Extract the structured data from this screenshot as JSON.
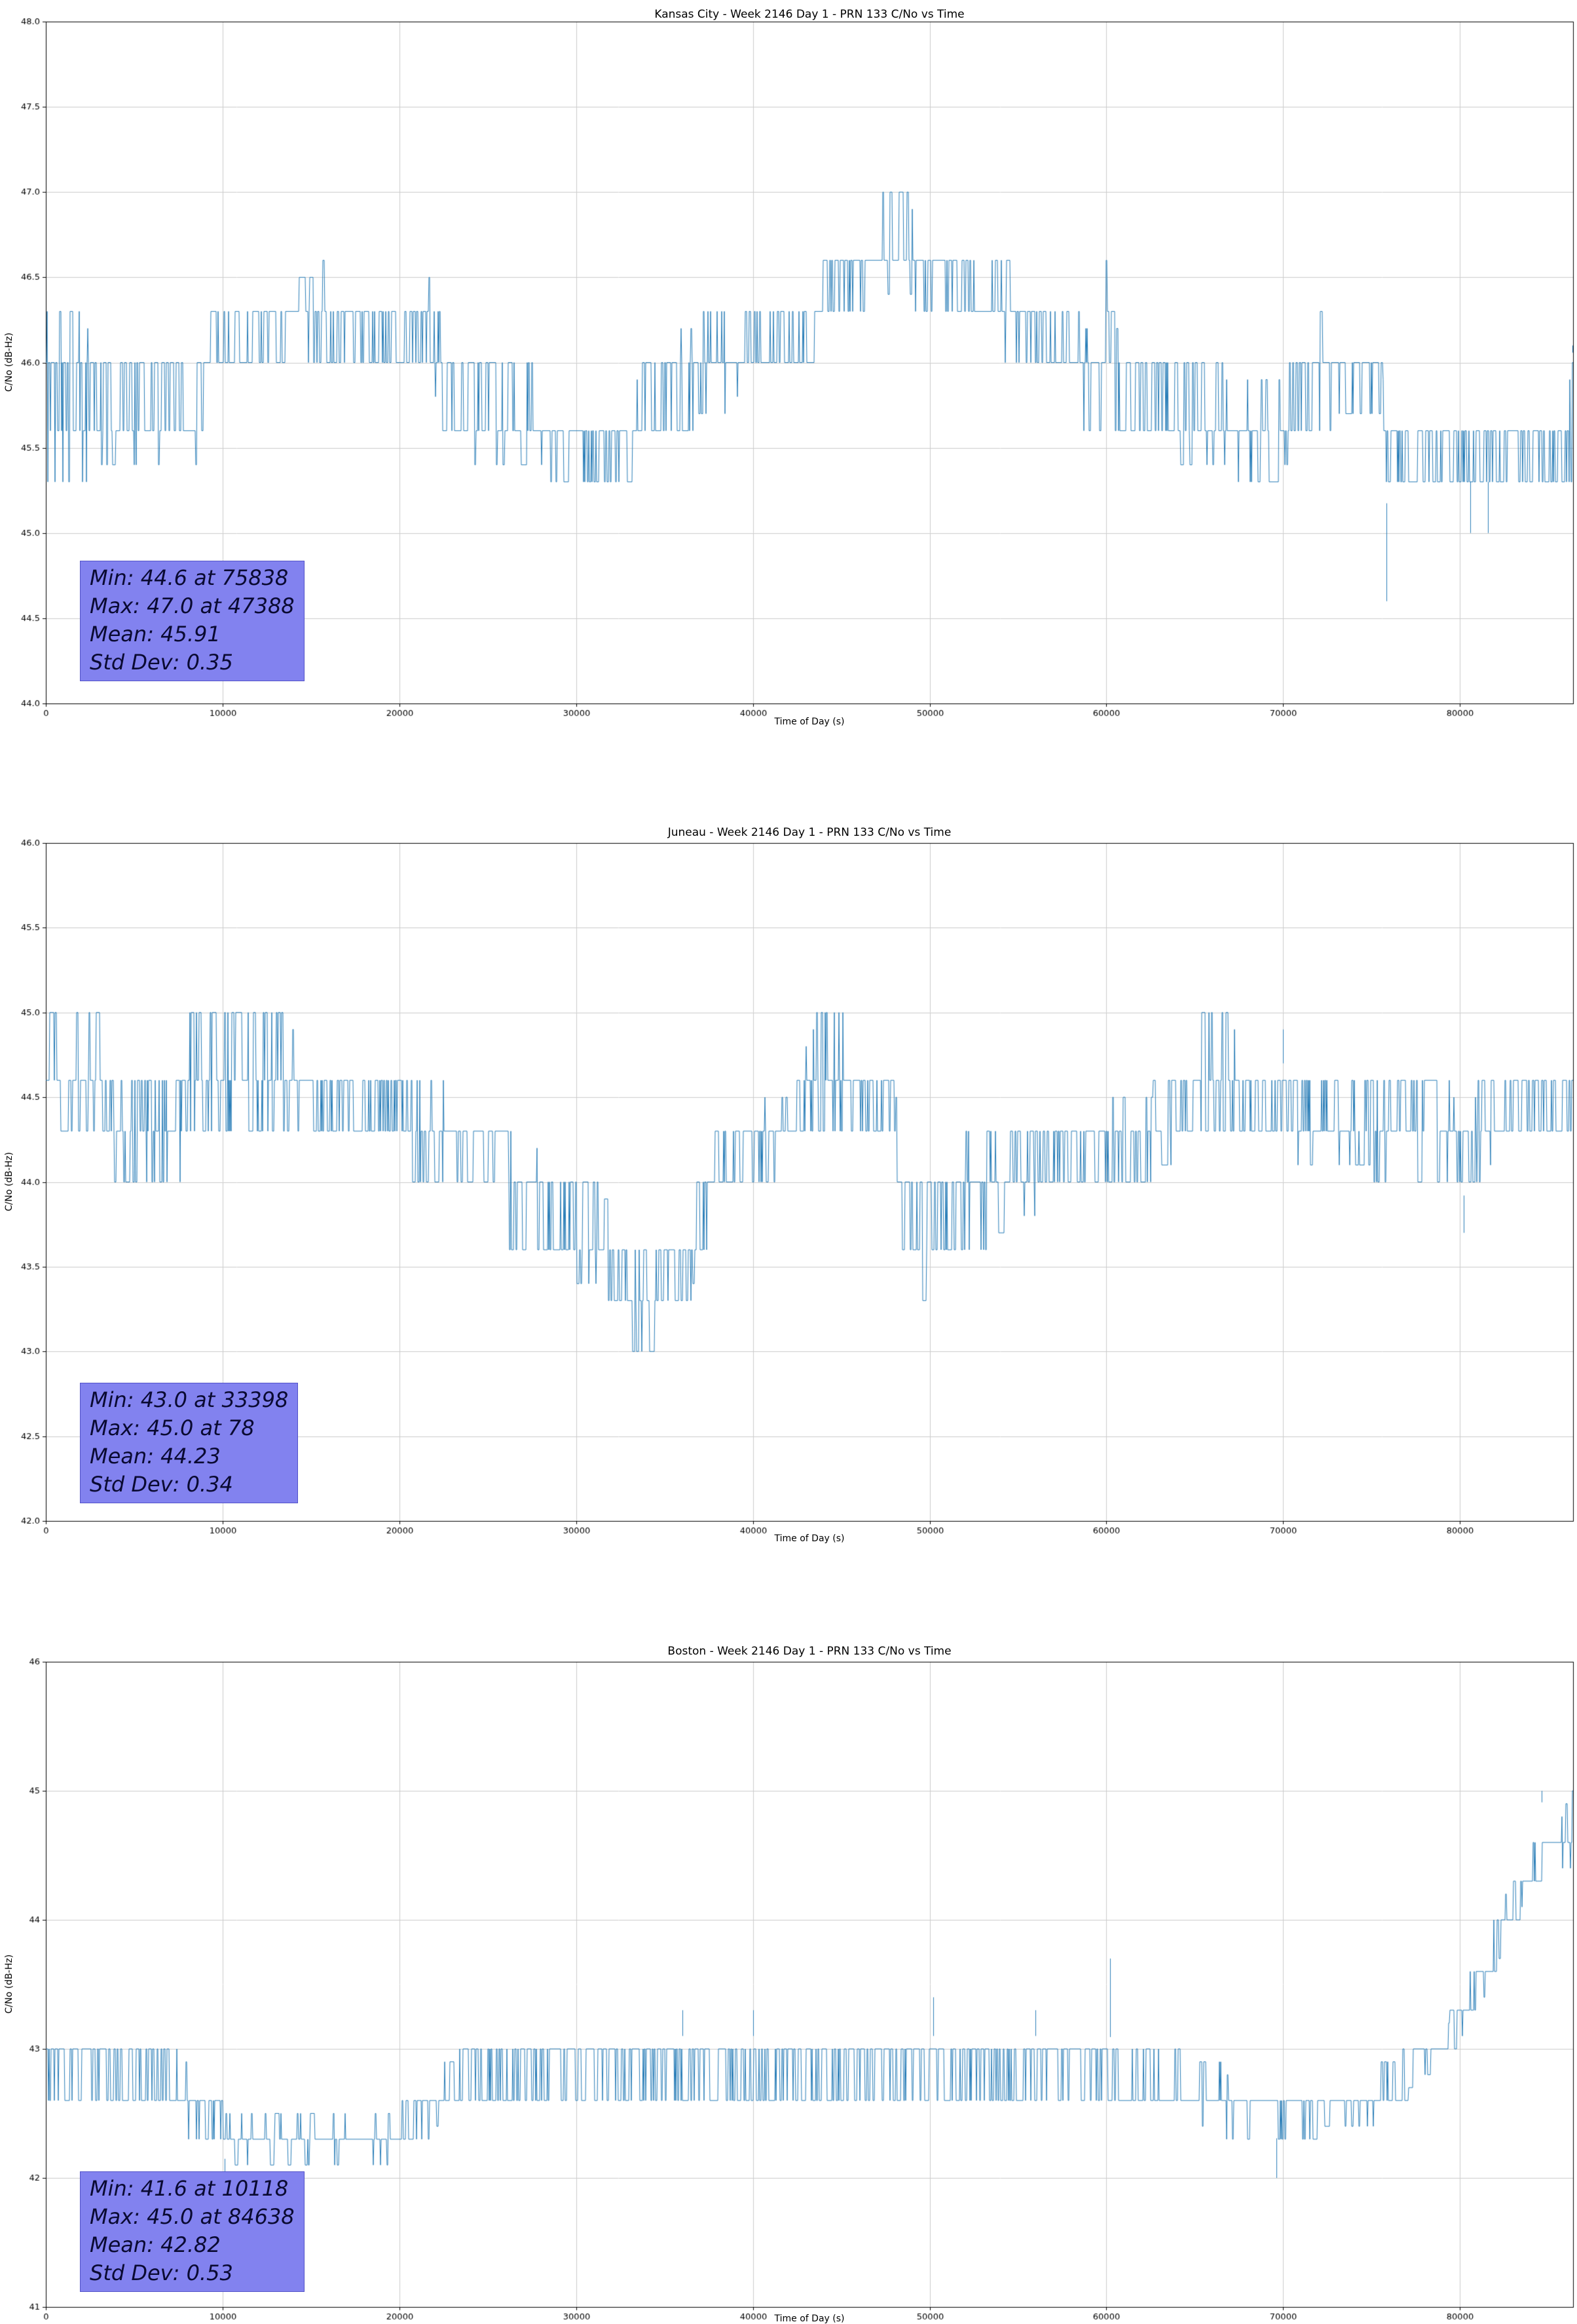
{
  "style": {
    "figure_background": "#ffffff",
    "grid_color": "#cccccc",
    "spine_color": "#000000",
    "annotation_bg": "#8282ef",
    "annotation_text": "#0a0a32"
  },
  "chart_data": [
    {
      "type": "line",
      "title": "Kansas City - Week 2146 Day 1 - PRN 133 C/No vs Time",
      "xlabel": "Time of Day (s)",
      "ylabel": "C/No (dB-Hz)",
      "xlim": [
        0,
        86400
      ],
      "ylim": [
        44.0,
        48.0
      ],
      "xticks": [
        "0",
        "10000",
        "20000",
        "30000",
        "40000",
        "50000",
        "60000",
        "70000",
        "80000"
      ],
      "yticks": [
        "44.0",
        "44.5",
        "45.0",
        "45.5",
        "46.0",
        "46.5",
        "47.0",
        "47.5",
        "48.0"
      ],
      "grid": true,
      "legend": false,
      "line_color": "#1f77b4",
      "stats": {
        "min": 44.6,
        "min_time": 75838,
        "max": 47.0,
        "max_time": 47388,
        "mean": 45.91,
        "std": 0.35,
        "labels": {
          "min": "Min: 44.6 at 75838",
          "max": "Max: 47.0 at 47388",
          "mean": "Mean: 45.91",
          "std": "Std Dev: 0.35"
        }
      },
      "envelope": [
        [
          0,
          45.3,
          46.3
        ],
        [
          2200,
          45.3,
          46.3
        ],
        [
          2600,
          45.4,
          46.1
        ],
        [
          8600,
          45.4,
          46.1
        ],
        [
          9200,
          45.9,
          46.4
        ],
        [
          13000,
          46.0,
          46.4
        ],
        [
          15800,
          46.0,
          46.6
        ],
        [
          16400,
          46.0,
          46.3
        ],
        [
          21400,
          46.0,
          46.4
        ],
        [
          22000,
          45.8,
          46.6
        ],
        [
          22600,
          45.4,
          46.0
        ],
        [
          27800,
          45.4,
          46.0
        ],
        [
          28400,
          45.3,
          45.7
        ],
        [
          33000,
          45.3,
          45.7
        ],
        [
          33600,
          45.4,
          46.0
        ],
        [
          36200,
          45.5,
          46.2
        ],
        [
          36800,
          45.7,
          46.3
        ],
        [
          43400,
          45.9,
          46.3
        ],
        [
          44000,
          46.2,
          46.6
        ],
        [
          46800,
          46.3,
          46.7
        ],
        [
          47200,
          46.4,
          47.0
        ],
        [
          48800,
          46.4,
          47.0
        ],
        [
          49400,
          46.3,
          46.7
        ],
        [
          52000,
          46.3,
          46.7
        ],
        [
          52400,
          46.2,
          47.0
        ],
        [
          52800,
          46.0,
          46.6
        ],
        [
          55400,
          46.0,
          46.6
        ],
        [
          56000,
          46.0,
          46.3
        ],
        [
          57800,
          45.9,
          46.3
        ],
        [
          59400,
          45.3,
          46.2
        ],
        [
          60000,
          45.8,
          46.6
        ],
        [
          60800,
          45.5,
          46.1
        ],
        [
          63800,
          45.4,
          46.0
        ],
        [
          69800,
          45.3,
          45.9
        ],
        [
          70600,
          45.5,
          46.1
        ],
        [
          72400,
          45.6,
          46.3
        ],
        [
          73200,
          45.7,
          46.1
        ],
        [
          75400,
          45.7,
          46.1
        ],
        [
          75900,
          45.1,
          45.8
        ],
        [
          76300,
          45.3,
          45.6
        ],
        [
          85800,
          45.3,
          45.6
        ],
        [
          86400,
          45.3,
          46.1
        ]
      ],
      "spikes": [
        [
          47388,
          47.0
        ],
        [
          52400,
          47.0
        ],
        [
          75838,
          44.6
        ],
        [
          80600,
          45.0
        ],
        [
          81600,
          45.0
        ],
        [
          86350,
          46.1
        ]
      ]
    },
    {
      "type": "line",
      "title": "Juneau - Week 2146 Day 1 - PRN 133 C/No vs Time",
      "xlabel": "Time of Day (s)",
      "ylabel": "C/No (dB-Hz)",
      "xlim": [
        0,
        86400
      ],
      "ylim": [
        42.0,
        46.0
      ],
      "xticks": [
        "0",
        "10000",
        "20000",
        "30000",
        "40000",
        "50000",
        "60000",
        "70000",
        "80000"
      ],
      "yticks": [
        "42.0",
        "42.5",
        "43.0",
        "43.5",
        "44.0",
        "44.5",
        "45.0",
        "45.5",
        "46.0"
      ],
      "grid": true,
      "legend": false,
      "line_color": "#1f77b4",
      "stats": {
        "min": 43.0,
        "min_time": 33398,
        "max": 45.0,
        "max_time": 78,
        "mean": 44.23,
        "std": 0.34,
        "labels": {
          "min": "Min: 43.0 at 33398",
          "max": "Max: 45.0 at 78",
          "mean": "Mean: 44.23",
          "std": "Std Dev: 0.34"
        }
      },
      "envelope": [
        [
          0,
          44.3,
          45.0
        ],
        [
          3000,
          44.3,
          45.0
        ],
        [
          3400,
          44.0,
          44.7
        ],
        [
          7600,
          44.0,
          44.7
        ],
        [
          8200,
          44.3,
          45.0
        ],
        [
          13800,
          44.3,
          45.0
        ],
        [
          14400,
          44.2,
          44.7
        ],
        [
          19800,
          44.2,
          44.7
        ],
        [
          20400,
          44.0,
          44.6
        ],
        [
          22400,
          44.0,
          44.6
        ],
        [
          23000,
          43.9,
          44.4
        ],
        [
          25400,
          43.9,
          44.4
        ],
        [
          26000,
          43.6,
          44.3
        ],
        [
          27800,
          43.6,
          44.2
        ],
        [
          28600,
          43.4,
          44.0
        ],
        [
          31400,
          43.4,
          44.0
        ],
        [
          32200,
          43.3,
          43.7
        ],
        [
          33000,
          43.0,
          43.7
        ],
        [
          34600,
          43.0,
          43.7
        ],
        [
          35200,
          43.3,
          43.7
        ],
        [
          36400,
          43.3,
          43.8
        ],
        [
          37200,
          43.6,
          44.2
        ],
        [
          38600,
          43.9,
          44.4
        ],
        [
          41800,
          44.0,
          44.5
        ],
        [
          42600,
          44.2,
          44.7
        ],
        [
          43600,
          44.3,
          45.0
        ],
        [
          45400,
          44.3,
          45.0
        ],
        [
          46200,
          44.2,
          44.7
        ],
        [
          47800,
          44.2,
          44.7
        ],
        [
          48600,
          43.4,
          44.1
        ],
        [
          50000,
          43.3,
          44.0
        ],
        [
          50800,
          43.6,
          44.2
        ],
        [
          53000,
          43.6,
          44.3
        ],
        [
          56000,
          43.8,
          44.4
        ],
        [
          61800,
          44.0,
          44.5
        ],
        [
          64800,
          44.2,
          44.7
        ],
        [
          65400,
          44.3,
          45.0
        ],
        [
          67000,
          44.3,
          45.0
        ],
        [
          67600,
          44.2,
          44.7
        ],
        [
          72000,
          44.1,
          44.7
        ],
        [
          78000,
          44.0,
          44.7
        ],
        [
          80000,
          43.9,
          44.5
        ],
        [
          82000,
          44.1,
          44.6
        ],
        [
          85800,
          44.2,
          44.7
        ],
        [
          86400,
          44.3,
          45.0
        ]
      ],
      "spikes": [
        [
          78,
          45.0
        ],
        [
          33398,
          43.0
        ],
        [
          70000,
          44.9
        ],
        [
          80200,
          43.7
        ]
      ]
    },
    {
      "type": "line",
      "title": "Boston - Week 2146 Day 1 - PRN 133 C/No vs Time",
      "xlabel": "Time of Day (s)",
      "ylabel": "C/No (dB-Hz)",
      "xlim": [
        0,
        86400
      ],
      "ylim": [
        41.0,
        46.0
      ],
      "xticks": [
        "0",
        "10000",
        "20000",
        "30000",
        "40000",
        "50000",
        "60000",
        "70000",
        "80000"
      ],
      "yticks": [
        "41",
        "42",
        "43",
        "44",
        "45",
        "46"
      ],
      "grid": true,
      "legend": false,
      "line_color": "#1f77b4",
      "stats": {
        "min": 41.6,
        "min_time": 10118,
        "max": 45.0,
        "max_time": 84638,
        "mean": 42.82,
        "std": 0.53,
        "labels": {
          "min": "Min: 41.6 at 10118",
          "max": "Max: 45.0 at 84638",
          "mean": "Mean: 42.82",
          "std": "Std Dev: 0.53"
        }
      },
      "envelope": [
        [
          0,
          42.6,
          43.2
        ],
        [
          1200,
          42.6,
          43.0
        ],
        [
          7400,
          42.5,
          43.0
        ],
        [
          8200,
          42.3,
          42.8
        ],
        [
          9600,
          42.2,
          42.6
        ],
        [
          10600,
          42.1,
          42.5
        ],
        [
          19400,
          42.1,
          42.5
        ],
        [
          20200,
          42.2,
          42.6
        ],
        [
          22200,
          42.4,
          42.8
        ],
        [
          23600,
          42.6,
          43.0
        ],
        [
          27000,
          42.6,
          43.1
        ],
        [
          44000,
          42.6,
          43.1
        ],
        [
          55000,
          42.6,
          43.1
        ],
        [
          60000,
          42.6,
          43.1
        ],
        [
          62400,
          42.5,
          43.0
        ],
        [
          66400,
          42.4,
          42.9
        ],
        [
          67200,
          42.3,
          42.8
        ],
        [
          69200,
          42.3,
          42.7
        ],
        [
          74800,
          42.4,
          42.7
        ],
        [
          75600,
          42.5,
          42.9
        ],
        [
          77600,
          42.7,
          43.0
        ],
        [
          79200,
          42.9,
          43.2
        ],
        [
          80600,
          43.2,
          43.6
        ],
        [
          81600,
          43.5,
          43.9
        ],
        [
          82600,
          43.8,
          44.2
        ],
        [
          83600,
          44.1,
          44.4
        ],
        [
          84400,
          44.3,
          45.0
        ],
        [
          85200,
          44.4,
          44.7
        ],
        [
          86400,
          44.4,
          45.0
        ]
      ],
      "spikes": [
        [
          10118,
          41.6
        ],
        [
          36000,
          43.3
        ],
        [
          40000,
          43.3
        ],
        [
          50200,
          43.4
        ],
        [
          56000,
          43.3
        ],
        [
          60200,
          43.7
        ],
        [
          69600,
          42.0
        ],
        [
          84638,
          45.0
        ]
      ]
    }
  ]
}
